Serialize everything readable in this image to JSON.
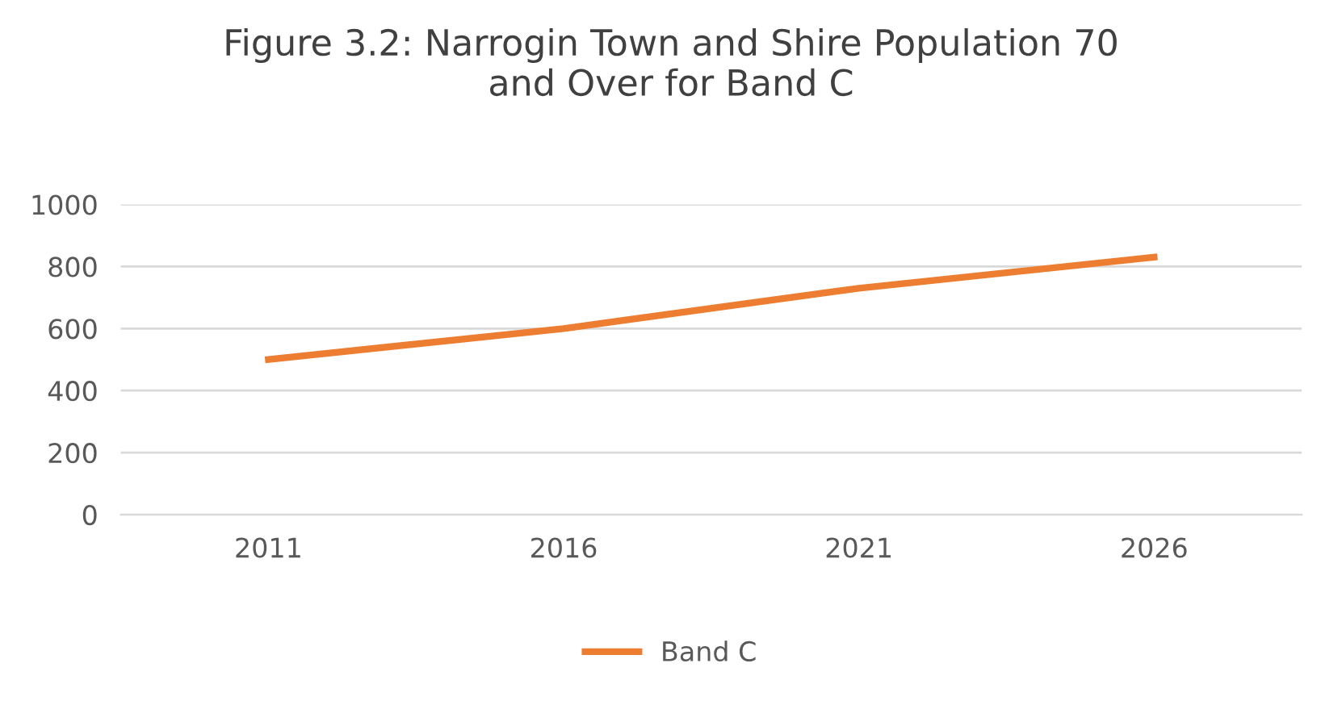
{
  "chart_data": {
    "type": "line",
    "title": "Figure 3.2: Narrogin Town and Shire Population 70\nand Over for Band C",
    "categories": [
      "2011",
      "2016",
      "2021",
      "2026"
    ],
    "series": [
      {
        "name": "Band C",
        "color": "#ed7d31",
        "values": [
          500,
          600,
          730,
          830
        ]
      }
    ],
    "ylim": [
      0,
      1000
    ],
    "yticks": [
      0,
      200,
      400,
      600,
      800,
      1000
    ],
    "grid": "y",
    "legend": "bottom",
    "marker": "none",
    "line_style": "solid"
  }
}
